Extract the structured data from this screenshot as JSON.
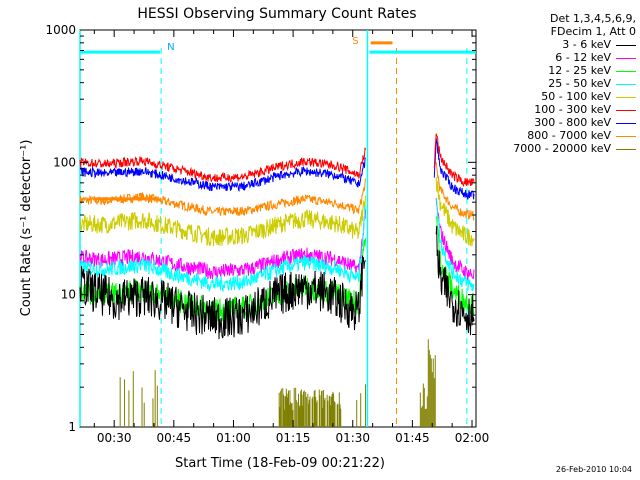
{
  "chart_data": {
    "type": "line",
    "title": "HESSI Observing Summary Count Rates",
    "xlabel": "Start Time (18-Feb-09 00:21:22)",
    "ylabel": "Count Rate (s⁻¹ detector⁻¹)",
    "y_scale": "log",
    "ylim": [
      1,
      1000
    ],
    "xlim_minutes": [
      21.4,
      121.0
    ],
    "x_tick_labels": [
      "00:30",
      "00:45",
      "01:00",
      "01:15",
      "01:30",
      "01:45",
      "02:00"
    ],
    "x_tick_minutes": [
      30,
      45,
      60,
      75,
      90,
      105,
      120
    ],
    "y_tick_labels": [
      "1",
      "10",
      "100",
      "1000"
    ],
    "y_tick_values": [
      1,
      10,
      100,
      1000
    ],
    "legend": {
      "header": [
        "Det 1,3,4,5,6,9,",
        "FDecim 1, Att 0"
      ],
      "placement": "outside-right"
    },
    "series": [
      {
        "name": "3 - 6 keV",
        "color": "#000000",
        "min_start": [
          21.4,
          15.2
        ],
        "points": [
          [
            21.4,
            12
          ],
          [
            25,
            10.5
          ],
          [
            30,
            9.2
          ],
          [
            37,
            9.8
          ],
          [
            42,
            9.0
          ],
          [
            50,
            7.2
          ],
          [
            57,
            6.5
          ],
          [
            63,
            7.0
          ],
          [
            70,
            9.5
          ],
          [
            77,
            11.5
          ],
          [
            83,
            10.5
          ],
          [
            89,
            8.0
          ],
          [
            91.5,
            7.5
          ],
          [
            92.5,
            16
          ],
          [
            93.2,
            23
          ]
        ],
        "points2": [
          [
            111,
            25
          ],
          [
            112,
            13
          ],
          [
            115,
            9
          ],
          [
            118,
            7.3
          ],
          [
            120.5,
            7.0
          ]
        ]
      },
      {
        "name": "6 - 12 keV",
        "color": "#ff00ff",
        "points": [
          [
            21.4,
            19
          ],
          [
            27,
            18.3
          ],
          [
            37,
            19.5
          ],
          [
            45,
            17
          ],
          [
            55,
            14.8
          ],
          [
            64,
            15.5
          ],
          [
            72,
            18.5
          ],
          [
            78,
            20
          ],
          [
            86,
            18.5
          ],
          [
            91.5,
            15.5
          ],
          [
            93.2,
            40
          ]
        ],
        "points2": [
          [
            111,
            50
          ],
          [
            112,
            30
          ],
          [
            115,
            18
          ],
          [
            118,
            15
          ],
          [
            120.5,
            14
          ]
        ]
      },
      {
        "name": "12 - 25 keV",
        "color": "#00ff00",
        "points": [
          [
            21.4,
            10.5
          ],
          [
            28,
            10
          ],
          [
            37,
            10.8
          ],
          [
            45,
            9.2
          ],
          [
            55,
            7.6
          ],
          [
            63,
            8.0
          ],
          [
            72,
            10.2
          ],
          [
            78,
            11.5
          ],
          [
            86,
            10.2
          ],
          [
            91.5,
            8.6
          ],
          [
            93.2,
            30
          ]
        ],
        "points2": [
          [
            111,
            40
          ],
          [
            112,
            18
          ],
          [
            115,
            11
          ],
          [
            118,
            9
          ],
          [
            120.5,
            8.5
          ]
        ]
      },
      {
        "name": "25 - 50 keV",
        "color": "#00ffff",
        "points": [
          [
            21.4,
            16
          ],
          [
            28,
            15.5
          ],
          [
            37,
            16.8
          ],
          [
            45,
            14.3
          ],
          [
            55,
            12.0
          ],
          [
            63,
            12.5
          ],
          [
            72,
            15.8
          ],
          [
            78,
            17.5
          ],
          [
            86,
            15.8
          ],
          [
            91.5,
            13.2
          ],
          [
            93.2,
            45
          ]
        ],
        "points2": [
          [
            111,
            60
          ],
          [
            112,
            25
          ],
          [
            115,
            15
          ],
          [
            118,
            12.5
          ],
          [
            120.5,
            11.5
          ]
        ]
      },
      {
        "name": "50 - 100 keV",
        "color": "#cccc00",
        "points": [
          [
            21.4,
            34
          ],
          [
            28,
            34
          ],
          [
            37,
            37
          ],
          [
            45,
            32
          ],
          [
            55,
            27
          ],
          [
            63,
            28
          ],
          [
            72,
            34.5
          ],
          [
            78,
            37.5
          ],
          [
            86,
            34.5
          ],
          [
            91.5,
            29
          ],
          [
            93.2,
            55
          ]
        ],
        "points2": [
          [
            111,
            75
          ],
          [
            112,
            50
          ],
          [
            115,
            33
          ],
          [
            118,
            28
          ],
          [
            120.5,
            27
          ]
        ]
      },
      {
        "name": "100 - 300 keV",
        "color": "#ff0000",
        "points": [
          [
            21.4,
            100
          ],
          [
            28,
            97
          ],
          [
            37,
            103
          ],
          [
            45,
            90
          ],
          [
            55,
            76
          ],
          [
            63,
            78
          ],
          [
            72,
            94
          ],
          [
            78,
            102
          ],
          [
            86,
            94
          ],
          [
            91.5,
            80
          ],
          [
            93.2,
            125
          ]
        ],
        "points2": [
          [
            110.5,
            90
          ],
          [
            111,
            170
          ],
          [
            112,
            110
          ],
          [
            115,
            80
          ],
          [
            118,
            71
          ],
          [
            120.5,
            70
          ]
        ]
      },
      {
        "name": "300 - 800 keV",
        "color": "#0000ff",
        "points": [
          [
            21.4,
            85
          ],
          [
            28,
            82
          ],
          [
            37,
            86
          ],
          [
            45,
            76
          ],
          [
            55,
            65
          ],
          [
            63,
            66
          ],
          [
            72,
            80
          ],
          [
            78,
            86
          ],
          [
            86,
            80
          ],
          [
            91.5,
            68
          ],
          [
            93.2,
            105
          ]
        ],
        "points2": [
          [
            110.5,
            75
          ],
          [
            111,
            150
          ],
          [
            112,
            90
          ],
          [
            115,
            65
          ],
          [
            118,
            58
          ],
          [
            120.5,
            56
          ]
        ]
      },
      {
        "name": "800 - 7000 keV",
        "color": "#ff8800",
        "points": [
          [
            21.4,
            52
          ],
          [
            28,
            51
          ],
          [
            37,
            55
          ],
          [
            45,
            49
          ],
          [
            55,
            42
          ],
          [
            63,
            43
          ],
          [
            72,
            49
          ],
          [
            78,
            53
          ],
          [
            86,
            49
          ],
          [
            91.5,
            43
          ],
          [
            93.2,
            70
          ]
        ],
        "points2": [
          [
            111,
            95
          ],
          [
            112,
            62
          ],
          [
            115,
            46
          ],
          [
            118,
            41
          ],
          [
            120.5,
            40
          ]
        ]
      },
      {
        "name": "7000 - 20000 keV",
        "color": "#808000",
        "points": [
          [
            21.4,
            1
          ]
        ]
      }
    ],
    "overlays": {
      "attenuator_bars": [
        {
          "color": "#00ffff",
          "x0": 21.4,
          "x1": 41.5,
          "y": 680
        },
        {
          "color": "#ff8800",
          "x0": 94.5,
          "x1": 100.0,
          "y": 800
        },
        {
          "color": "#00ffff",
          "x0": 94.2,
          "x1": 121.0,
          "y": 680
        },
        {
          "color": "#ff8800",
          "x0": 25.0,
          "x1": 41.2,
          "y": 53
        }
      ],
      "markers": [
        {
          "label": "N",
          "color": "#00aaff",
          "x": 41.8
        },
        {
          "label": "S",
          "color": "#ff8800",
          "x": 93.4
        }
      ],
      "solid_vlines": [
        {
          "color": "#00ffff",
          "x": 21.4
        },
        {
          "color": "#00ffff",
          "x": 93.7
        }
      ],
      "dashed_vlines": [
        {
          "color": "#00ffff",
          "x": 41.8
        },
        {
          "color": "#ff8800",
          "x": 101.0
        },
        {
          "color": "#00ffff",
          "x": 118.7
        }
      ]
    }
  },
  "footer": {
    "timestamp": "26-Feb-2010 10:04"
  }
}
